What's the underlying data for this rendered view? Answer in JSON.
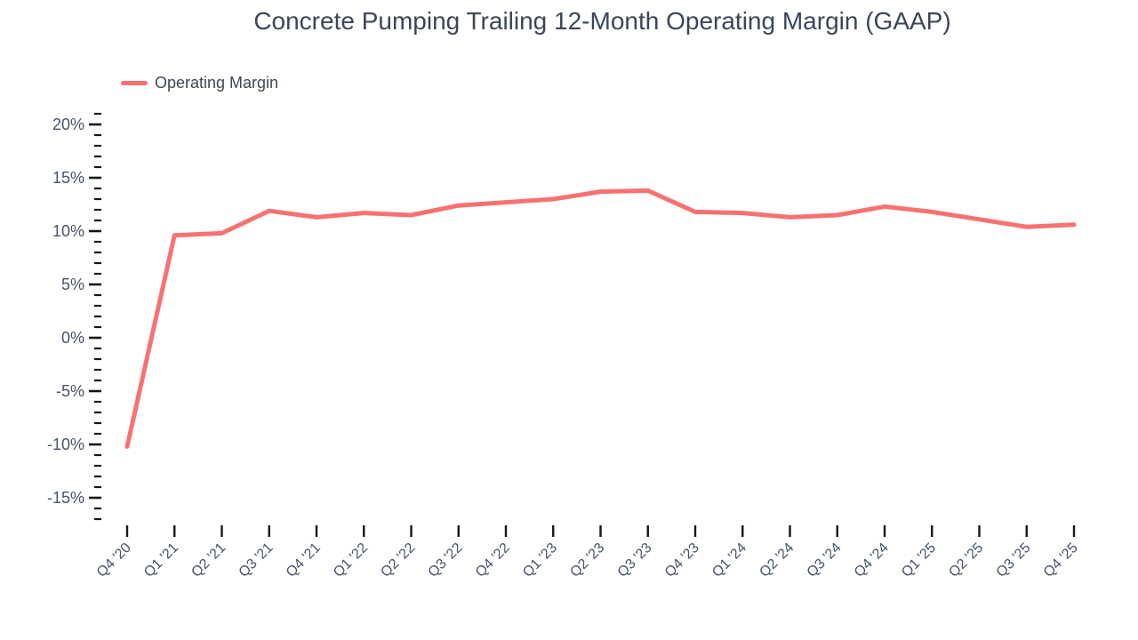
{
  "title": "Concrete Pumping Trailing 12-Month Operating Margin (GAAP)",
  "legend": {
    "label": "Operating Margin",
    "swatch_color": "#f87171"
  },
  "colors": {
    "background": "#ffffff",
    "title_text": "#3b4659",
    "axis_label_text": "#46536b",
    "tick_mark": "#15171c",
    "line": "#f87171"
  },
  "chart_data": {
    "type": "line",
    "title": "Concrete Pumping Trailing 12-Month Operating Margin (GAAP)",
    "xlabel": "",
    "ylabel": "",
    "unit": "%",
    "categories": [
      "Q4 '20",
      "Q1 '21",
      "Q2 '21",
      "Q3 '21",
      "Q4 '21",
      "Q1 '22",
      "Q2 '22",
      "Q3 '22",
      "Q4 '22",
      "Q1 '23",
      "Q2 '23",
      "Q3 '23",
      "Q4 '23",
      "Q1 '24",
      "Q2 '24",
      "Q3 '24",
      "Q4 '24",
      "Q1 '25",
      "Q2 '25",
      "Q3 '25",
      "Q4 '25"
    ],
    "series": [
      {
        "name": "Operating Margin",
        "color": "#f87171",
        "values": [
          -10.2,
          9.6,
          9.8,
          11.9,
          11.3,
          11.7,
          11.5,
          12.4,
          12.7,
          13.0,
          13.7,
          13.8,
          11.8,
          11.7,
          11.3,
          11.5,
          12.3,
          11.8,
          11.1,
          10.4,
          10.6
        ]
      }
    ],
    "y_axis": {
      "major_ticks": [
        20,
        15,
        10,
        5,
        0,
        -5,
        -10,
        -15
      ],
      "tick_labels": [
        "20%",
        "15%",
        "10%",
        "5%",
        "0%",
        "-5%",
        "-10%",
        "-15%"
      ],
      "minor_tick_step": 1,
      "range": [
        -17,
        21
      ]
    },
    "grid": false,
    "legend_position": "top-left",
    "background": "#ffffff"
  }
}
